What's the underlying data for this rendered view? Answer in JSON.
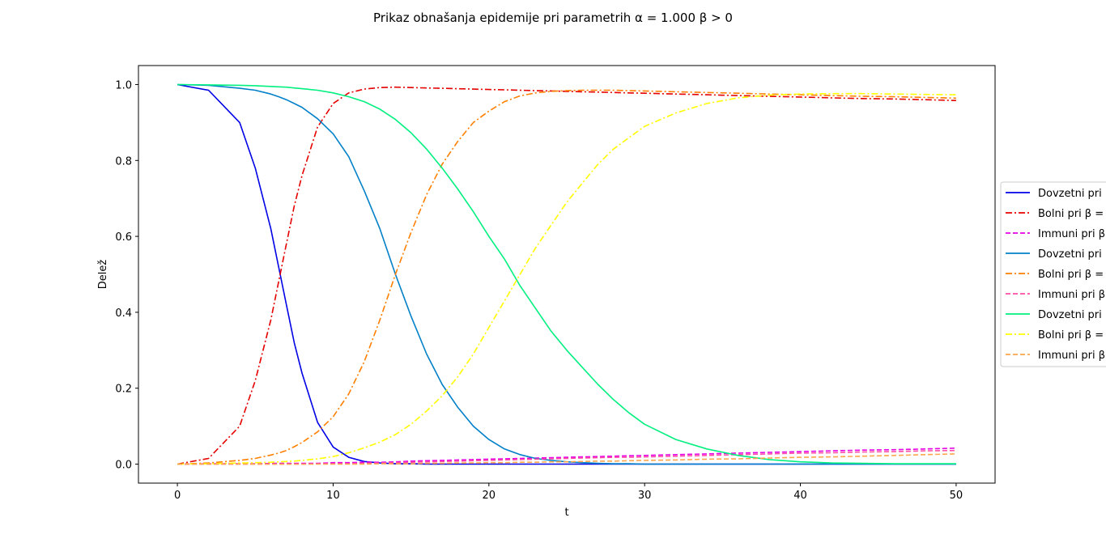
{
  "chart_data": {
    "type": "line",
    "title": "Prikaz obnašanja epidemije pri parametrih α = 1.000 β > 0",
    "xlabel": "t",
    "ylabel": "Delež",
    "xlim": [
      -2.5,
      52.5
    ],
    "ylim": [
      -0.05,
      1.05
    ],
    "x_ticks": [
      0,
      10,
      20,
      30,
      40,
      50
    ],
    "y_ticks": [
      0.0,
      0.2,
      0.4,
      0.6,
      0.8,
      1.0
    ],
    "x_tick_labels": [
      "0",
      "10",
      "20",
      "30",
      "40",
      "50"
    ],
    "y_tick_labels": [
      "0.0",
      "0.2",
      "0.4",
      "0.6",
      "0.8",
      "1.0"
    ],
    "grid": false,
    "legend_position": "right",
    "x": [
      0,
      2,
      4,
      5,
      6,
      6.5,
      7,
      7.5,
      8,
      9,
      10,
      11,
      12,
      13,
      14,
      15,
      16,
      17,
      18,
      19,
      20,
      21,
      22,
      23,
      24,
      25,
      26,
      27,
      28,
      29,
      30,
      32,
      34,
      36,
      38,
      40,
      42,
      44,
      46,
      48,
      50
    ],
    "series": [
      {
        "name": "Dovzetni pri",
        "color": "#0000e6",
        "dash": "solid",
        "values": [
          1.0,
          0.985,
          0.9,
          0.78,
          0.62,
          0.52,
          0.42,
          0.32,
          0.24,
          0.11,
          0.045,
          0.018,
          0.007,
          0.003,
          0.001,
          0.001,
          0,
          0,
          0,
          0,
          0,
          0,
          0,
          0,
          0,
          0,
          0,
          0,
          0,
          0,
          0,
          0,
          0,
          0,
          0,
          0,
          0,
          0,
          0,
          0,
          0
        ]
      },
      {
        "name": "Bolni pri β =",
        "color": "#e60000",
        "dash": "dashdot",
        "values": [
          0.0,
          0.015,
          0.1,
          0.22,
          0.38,
          0.48,
          0.58,
          0.68,
          0.76,
          0.888,
          0.95,
          0.978,
          0.988,
          0.992,
          0.993,
          0.992,
          0.991,
          0.99,
          0.989,
          0.988,
          0.987,
          0.986,
          0.985,
          0.984,
          0.983,
          0.982,
          0.981,
          0.98,
          0.979,
          0.978,
          0.977,
          0.975,
          0.973,
          0.971,
          0.969,
          0.967,
          0.965,
          0.963,
          0.962,
          0.96,
          0.958
        ]
      },
      {
        "name": "Immuni pri β =",
        "color": "#e600e6",
        "dash": "dashed",
        "values": [
          0.0,
          0.001,
          0.001,
          0.001,
          0.002,
          0.002,
          0.002,
          0.002,
          0.002,
          0.002,
          0.004,
          0.004,
          0.005,
          0.005,
          0.006,
          0.008,
          0.009,
          0.01,
          0.011,
          0.012,
          0.013,
          0.014,
          0.015,
          0.016,
          0.017,
          0.018,
          0.019,
          0.02,
          0.021,
          0.022,
          0.023,
          0.025,
          0.027,
          0.029,
          0.031,
          0.033,
          0.035,
          0.037,
          0.038,
          0.04,
          0.042
        ]
      },
      {
        "name": "Dovzetni pri",
        "color": "#0080c8",
        "dash": "solid",
        "values": [
          1.0,
          0.998,
          0.99,
          0.985,
          0.975,
          0.968,
          0.96,
          0.95,
          0.94,
          0.91,
          0.87,
          0.81,
          0.72,
          0.62,
          0.5,
          0.39,
          0.29,
          0.21,
          0.15,
          0.1,
          0.065,
          0.04,
          0.025,
          0.015,
          0.01,
          0.006,
          0.004,
          0.002,
          0.001,
          0.001,
          0,
          0,
          0,
          0,
          0,
          0,
          0,
          0,
          0,
          0,
          0
        ]
      },
      {
        "name": "Bolni pri β =",
        "color": "#ff7f00",
        "dash": "dashdot",
        "values": [
          0.0,
          0.003,
          0.01,
          0.015,
          0.024,
          0.029,
          0.036,
          0.046,
          0.057,
          0.085,
          0.125,
          0.185,
          0.27,
          0.38,
          0.5,
          0.61,
          0.71,
          0.79,
          0.85,
          0.9,
          0.93,
          0.955,
          0.97,
          0.978,
          0.982,
          0.984,
          0.985,
          0.985,
          0.985,
          0.984,
          0.983,
          0.981,
          0.979,
          0.977,
          0.975,
          0.973,
          0.971,
          0.969,
          0.968,
          0.966,
          0.964
        ]
      },
      {
        "name": "Immuni pri β =",
        "color": "#ff4da6",
        "dash": "dashed",
        "values": [
          0.0,
          0.0,
          0.0,
          0.0,
          0.0,
          0.0,
          0.0,
          0.0,
          0.0,
          0.001,
          0.001,
          0.001,
          0.002,
          0.003,
          0.004,
          0.005,
          0.006,
          0.007,
          0.008,
          0.009,
          0.01,
          0.011,
          0.012,
          0.013,
          0.014,
          0.015,
          0.016,
          0.017,
          0.018,
          0.018,
          0.019,
          0.021,
          0.023,
          0.025,
          0.027,
          0.029,
          0.03,
          0.032,
          0.033,
          0.035,
          0.036
        ]
      },
      {
        "name": "Dovzetni pri",
        "color": "#00f080",
        "dash": "solid",
        "values": [
          1.0,
          0.999,
          0.998,
          0.997,
          0.995,
          0.994,
          0.993,
          0.991,
          0.989,
          0.985,
          0.978,
          0.968,
          0.955,
          0.935,
          0.908,
          0.873,
          0.83,
          0.78,
          0.725,
          0.665,
          0.6,
          0.54,
          0.47,
          0.41,
          0.35,
          0.3,
          0.255,
          0.21,
          0.17,
          0.135,
          0.105,
          0.065,
          0.04,
          0.023,
          0.012,
          0.006,
          0.003,
          0.002,
          0.001,
          0.001,
          0.001
        ]
      },
      {
        "name": "Bolni pri β =",
        "color": "#ffff00",
        "dash": "dashdot",
        "values": [
          0.0,
          0.001,
          0.003,
          0.004,
          0.005,
          0.006,
          0.007,
          0.008,
          0.01,
          0.014,
          0.02,
          0.03,
          0.043,
          0.058,
          0.078,
          0.105,
          0.14,
          0.18,
          0.23,
          0.29,
          0.36,
          0.43,
          0.5,
          0.57,
          0.63,
          0.69,
          0.74,
          0.79,
          0.83,
          0.86,
          0.89,
          0.925,
          0.95,
          0.965,
          0.972,
          0.975,
          0.976,
          0.976,
          0.975,
          0.974,
          0.973
        ]
      },
      {
        "name": "Immuni pri β =",
        "color": "#ffa64d",
        "dash": "dashed",
        "values": [
          0.0,
          0.0,
          0.0,
          0.0,
          0.0,
          0.0,
          0.0,
          0.0,
          0.0,
          0.0,
          0.0,
          0.0,
          0.0,
          0.001,
          0.001,
          0.001,
          0.002,
          0.002,
          0.003,
          0.003,
          0.004,
          0.004,
          0.005,
          0.005,
          0.006,
          0.006,
          0.007,
          0.008,
          0.008,
          0.009,
          0.01,
          0.011,
          0.013,
          0.014,
          0.016,
          0.018,
          0.019,
          0.021,
          0.023,
          0.025,
          0.027
        ]
      }
    ]
  }
}
